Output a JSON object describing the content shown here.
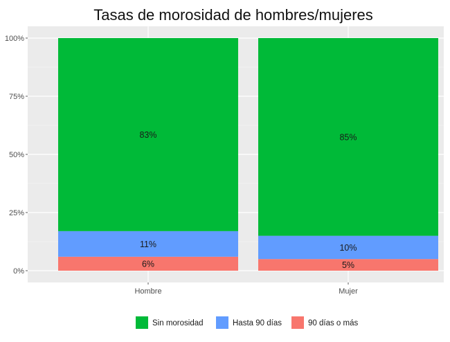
{
  "chart_data": {
    "type": "bar",
    "stacked": true,
    "title": "Tasas de morosidad de hombres/mujeres",
    "xlabel": "",
    "ylabel": "",
    "categories": [
      "Hombre",
      "Mujer"
    ],
    "ylim": [
      0,
      100
    ],
    "y_ticks": [
      "0%",
      "25%",
      "50%",
      "75%",
      "100%"
    ],
    "y_tick_values": [
      0,
      25,
      50,
      75,
      100
    ],
    "grid": true,
    "legend_position": "bottom",
    "series": [
      {
        "name": "90 días o más",
        "color": "#F8766D",
        "values": [
          6,
          5
        ],
        "labels": [
          "6%",
          "5%"
        ]
      },
      {
        "name": "Hasta 90 días",
        "color": "#619CFF",
        "values": [
          11,
          10
        ],
        "labels": [
          "11%",
          "10%"
        ]
      },
      {
        "name": "Sin morosidad",
        "color": "#00BA38",
        "values": [
          83,
          85
        ],
        "labels": [
          "83%",
          "85%"
        ]
      }
    ],
    "legend_order": [
      "Sin morosidad",
      "Hasta 90 días",
      "90 días o más"
    ]
  }
}
